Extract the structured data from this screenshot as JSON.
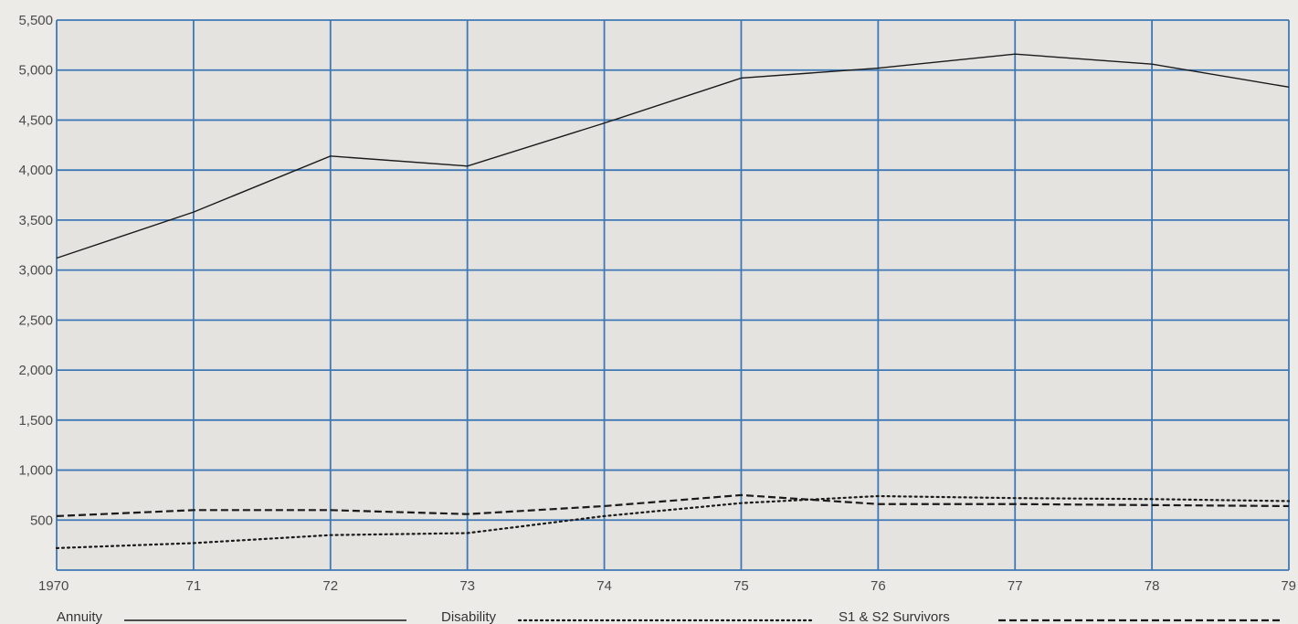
{
  "chart_data": {
    "type": "line",
    "title": "",
    "xlabel": "",
    "ylabel": "",
    "x": [
      "1970",
      "71",
      "72",
      "73",
      "74",
      "75",
      "76",
      "77",
      "78",
      "79"
    ],
    "y_ticks": [
      "5,500",
      "5,000",
      "4,500",
      "4,000",
      "3,500",
      "3,000",
      "2,500",
      "2,000",
      "1,500",
      "1,000",
      "500"
    ],
    "ylim": [
      0,
      5500
    ],
    "grid": true,
    "legend_position": "bottom",
    "series": [
      {
        "name": "Annuity",
        "style": "solid",
        "values": [
          3120,
          3580,
          4140,
          4040,
          4470,
          4920,
          5020,
          5160,
          5060,
          4830
        ]
      },
      {
        "name": "Disability",
        "style": "dotted",
        "values": [
          220,
          270,
          350,
          370,
          540,
          670,
          740,
          720,
          710,
          690
        ]
      },
      {
        "name": "S1 & S2 Survivors",
        "style": "dashed",
        "values": [
          540,
          600,
          600,
          560,
          640,
          750,
          660,
          660,
          650,
          640
        ]
      }
    ],
    "colors": {
      "grid": "#3f78b5",
      "line": "#1a1a1a"
    }
  }
}
